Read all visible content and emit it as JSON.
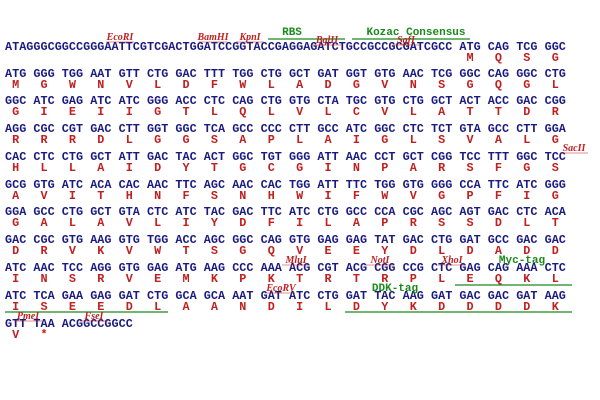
{
  "rows": [
    {
      "seq": "ATAGGGCGGCCGGGAATTCGTCGACTGGATCCGGTACCGAGGAGATCTGCCGCCGCGATCGCC ATG CAG TCG GGC",
      "aa": [
        "M",
        "Q",
        "S",
        "G"
      ],
      "enzymes": [
        "EcoRI",
        "BamHI",
        "KpnI",
        "BglII",
        "SgfI"
      ],
      "features": [
        "RBS",
        "Kozac Consensus"
      ]
    },
    {
      "seq": "ATG GGG TGG AAT GTT CTG GAC TTT TGG CTG GCT GAT GGT GTG AAC TCG GGC CAG GGC CTG",
      "aa": [
        "M",
        "G",
        "W",
        "N",
        "V",
        "L",
        "D",
        "F",
        "W",
        "L",
        "A",
        "D",
        "G",
        "V",
        "N",
        "S",
        "G",
        "Q",
        "G",
        "L"
      ]
    },
    {
      "seq": "GGC ATC GAG ATC ATC GGG ACC CTC CAG CTG GTG CTA TGC GTG CTG GCT ACT ACC GAC CGG",
      "aa": [
        "G",
        "I",
        "E",
        "I",
        "I",
        "G",
        "T",
        "L",
        "Q",
        "L",
        "V",
        "L",
        "C",
        "V",
        "L",
        "A",
        "T",
        "T",
        "D",
        "R"
      ]
    },
    {
      "seq": "AGG CGC CGT GAC CTT GGT GGC TCA GCC CCC CTT GCC ATC GGC CTC TCT GTA GCC CTT GGA",
      "aa": [
        "R",
        "R",
        "R",
        "D",
        "L",
        "G",
        "G",
        "S",
        "A",
        "P",
        "L",
        "A",
        "I",
        "G",
        "L",
        "S",
        "V",
        "A",
        "L",
        "G"
      ]
    },
    {
      "seq": "CAC CTC CTG GCT ATT GAC TAC ACT GGC TGT GGG ATT AAC CCT GCT CGG TCC TTT GGC TCC",
      "aa": [
        "H",
        "L",
        "L",
        "A",
        "I",
        "D",
        "Y",
        "T",
        "G",
        "C",
        "G",
        "I",
        "N",
        "P",
        "A",
        "R",
        "S",
        "F",
        "G",
        "S"
      ],
      "enzymes": [
        "SacII"
      ]
    },
    {
      "seq": "GCG GTG ATC ACA CAC AAC TTC AGC AAC CAC TGG ATT TTC TGG GTG GGG CCA TTC ATC GGG",
      "aa": [
        "A",
        "V",
        "I",
        "T",
        "H",
        "N",
        "F",
        "S",
        "N",
        "H",
        "W",
        "I",
        "F",
        "W",
        "V",
        "G",
        "P",
        "F",
        "I",
        "G"
      ]
    },
    {
      "seq": "GGA GCC CTG GCT GTA CTC ATC TAC GAC TTC ATC CTG GCC CCA CGC AGC AGT GAC CTC ACA",
      "aa": [
        "G",
        "A",
        "L",
        "A",
        "V",
        "L",
        "I",
        "Y",
        "D",
        "F",
        "I",
        "L",
        "A",
        "P",
        "R",
        "S",
        "S",
        "D",
        "L",
        "T"
      ]
    },
    {
      "seq": "GAC CGC GTG AAG GTG TGG ACC AGC GGC CAG GTG GAG GAG TAT GAC CTG GAT GCC GAC GAC",
      "aa": [
        "D",
        "R",
        "V",
        "K",
        "V",
        "W",
        "T",
        "S",
        "G",
        "Q",
        "V",
        "E",
        "E",
        "Y",
        "D",
        "L",
        "D",
        "A",
        "D",
        "D"
      ]
    },
    {
      "seq": "ATC AAC TCC AGG GTG GAG ATG AAG CCC AAA ACG CGT ACG CGG CCG CTC GAG CAG AAA CTC",
      "aa": [
        "I",
        "N",
        "S",
        "R",
        "V",
        "E",
        "M",
        "K",
        "P",
        "K",
        "T",
        "R",
        "T",
        "R",
        "P",
        "L",
        "E",
        "Q",
        "K",
        "L"
      ],
      "enzymes": [
        "MluI",
        "NotI",
        "XhoI"
      ],
      "features": [
        "Myc-tag"
      ]
    },
    {
      "seq": "ATC TCA GAA GAG GAT CTG GCA GCA AAT GAT ATC CTG GAT TAC AAG GAT GAC GAC GAT AAG",
      "aa": [
        "I",
        "S",
        "E",
        "E",
        "D",
        "L",
        "A",
        "A",
        "N",
        "D",
        "I",
        "L",
        "D",
        "Y",
        "K",
        "D",
        "D",
        "D",
        "D",
        "K"
      ],
      "enzymes": [
        "EcoRV"
      ],
      "features": [
        "DDK-tag"
      ]
    },
    {
      "seq": "GTT TAA ACGGCCGGCC",
      "aa": [
        "V",
        "*"
      ],
      "enzymes": [
        "PmeI",
        "FseI"
      ]
    }
  ]
}
